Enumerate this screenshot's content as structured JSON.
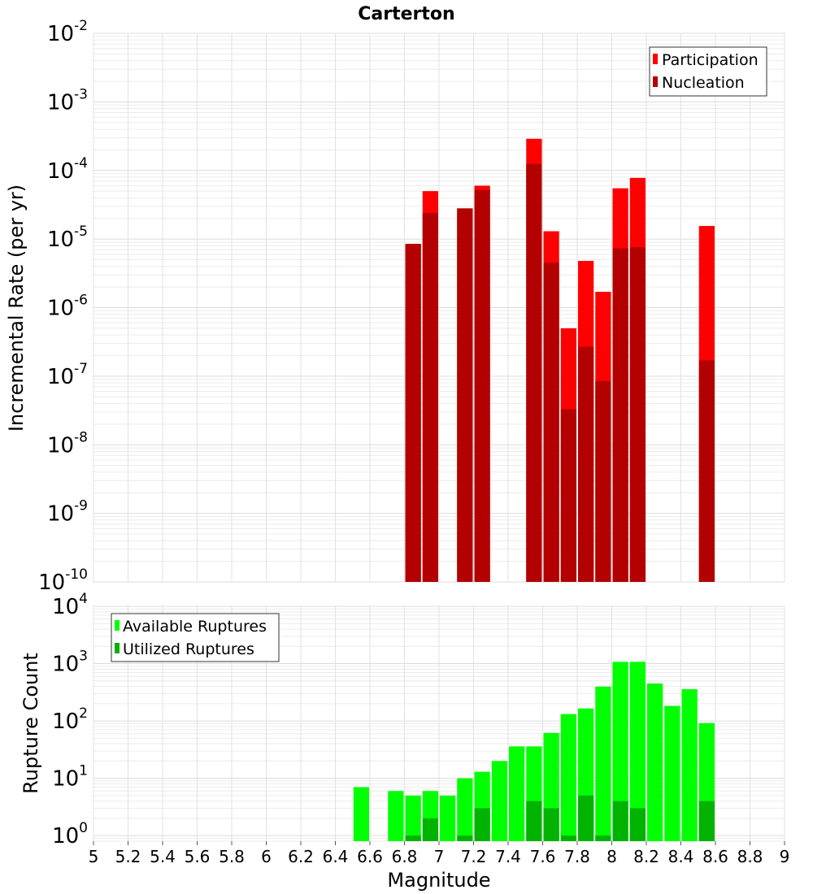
{
  "chart_data": [
    {
      "type": "bar",
      "title": "Carterton",
      "xlabel": "",
      "ylabel": "Incremental Rate (per yr)",
      "yscale": "log",
      "ylim": [
        1e-10,
        0.01
      ],
      "xlim": [
        5,
        9
      ],
      "grid": true,
      "legend_position": "top-right",
      "yticks": [
        {
          "base": "10",
          "exp": "-10"
        },
        {
          "base": "10",
          "exp": "-9"
        },
        {
          "base": "10",
          "exp": "-8"
        },
        {
          "base": "10",
          "exp": "-7"
        },
        {
          "base": "10",
          "exp": "-6"
        },
        {
          "base": "10",
          "exp": "-5"
        },
        {
          "base": "10",
          "exp": "-4"
        },
        {
          "base": "10",
          "exp": "-3"
        },
        {
          "base": "10",
          "exp": "-2"
        }
      ],
      "series": [
        {
          "name": "Participation",
          "color": "#ff0000",
          "points": [
            {
              "x": 6.85,
              "y": 8.5e-06
            },
            {
              "x": 6.95,
              "y": 5e-05
            },
            {
              "x": 7.15,
              "y": 2.8e-05
            },
            {
              "x": 7.25,
              "y": 6e-05
            },
            {
              "x": 7.55,
              "y": 0.00029
            },
            {
              "x": 7.65,
              "y": 1.3e-05
            },
            {
              "x": 7.75,
              "y": 5e-07
            },
            {
              "x": 7.85,
              "y": 4.8e-06
            },
            {
              "x": 7.95,
              "y": 1.7e-06
            },
            {
              "x": 8.05,
              "y": 5.5e-05
            },
            {
              "x": 8.15,
              "y": 7.8e-05
            },
            {
              "x": 8.55,
              "y": 1.55e-05
            }
          ]
        },
        {
          "name": "Nucleation",
          "color": "#b30000",
          "points": [
            {
              "x": 6.85,
              "y": 8.5e-06
            },
            {
              "x": 6.95,
              "y": 2.4e-05
            },
            {
              "x": 7.15,
              "y": 2.8e-05
            },
            {
              "x": 7.25,
              "y": 5.2e-05
            },
            {
              "x": 7.55,
              "y": 0.000125
            },
            {
              "x": 7.65,
              "y": 4.5e-06
            },
            {
              "x": 7.75,
              "y": 3.3e-08
            },
            {
              "x": 7.85,
              "y": 2.7e-07
            },
            {
              "x": 7.95,
              "y": 8.5e-08
            },
            {
              "x": 8.05,
              "y": 7.3e-06
            },
            {
              "x": 8.15,
              "y": 7.6e-06
            },
            {
              "x": 8.55,
              "y": 1.7e-07
            }
          ]
        }
      ]
    },
    {
      "type": "bar",
      "title": "",
      "xlabel": "Magnitude",
      "ylabel": "Rupture Count",
      "yscale": "log",
      "ylim": [
        0.8,
        10000
      ],
      "xlim": [
        5,
        9
      ],
      "grid": true,
      "legend_position": "top-left",
      "xticks": [
        "5",
        "5.2",
        "5.4",
        "5.6",
        "5.8",
        "6",
        "6.2",
        "6.4",
        "6.6",
        "6.8",
        "7",
        "7.2",
        "7.4",
        "7.6",
        "7.8",
        "8",
        "8.2",
        "8.4",
        "8.6",
        "8.8",
        "9"
      ],
      "yticks": [
        {
          "base": "10",
          "exp": "0"
        },
        {
          "base": "10",
          "exp": "1"
        },
        {
          "base": "10",
          "exp": "2"
        },
        {
          "base": "10",
          "exp": "3"
        },
        {
          "base": "10",
          "exp": "4"
        }
      ],
      "series": [
        {
          "name": "Available Ruptures",
          "color": "#00ff00",
          "points": [
            {
              "x": 6.55,
              "y": 7
            },
            {
              "x": 6.75,
              "y": 6
            },
            {
              "x": 6.85,
              "y": 5
            },
            {
              "x": 6.95,
              "y": 6
            },
            {
              "x": 7.05,
              "y": 5
            },
            {
              "x": 7.15,
              "y": 10
            },
            {
              "x": 7.25,
              "y": 13
            },
            {
              "x": 7.35,
              "y": 20
            },
            {
              "x": 7.45,
              "y": 36
            },
            {
              "x": 7.55,
              "y": 36
            },
            {
              "x": 7.65,
              "y": 62
            },
            {
              "x": 7.75,
              "y": 132
            },
            {
              "x": 7.85,
              "y": 165
            },
            {
              "x": 7.95,
              "y": 398
            },
            {
              "x": 8.05,
              "y": 1075
            },
            {
              "x": 8.15,
              "y": 1075
            },
            {
              "x": 8.25,
              "y": 450
            },
            {
              "x": 8.35,
              "y": 183
            },
            {
              "x": 8.45,
              "y": 358
            },
            {
              "x": 8.55,
              "y": 92
            }
          ]
        },
        {
          "name": "Utilized Ruptures",
          "color": "#00b300",
          "points": [
            {
              "x": 6.85,
              "y": 1
            },
            {
              "x": 6.95,
              "y": 2
            },
            {
              "x": 7.15,
              "y": 1
            },
            {
              "x": 7.25,
              "y": 3
            },
            {
              "x": 7.55,
              "y": 4
            },
            {
              "x": 7.65,
              "y": 3
            },
            {
              "x": 7.75,
              "y": 1
            },
            {
              "x": 7.85,
              "y": 5
            },
            {
              "x": 7.95,
              "y": 1
            },
            {
              "x": 8.05,
              "y": 4
            },
            {
              "x": 8.15,
              "y": 3
            },
            {
              "x": 8.55,
              "y": 4
            }
          ]
        }
      ]
    }
  ]
}
